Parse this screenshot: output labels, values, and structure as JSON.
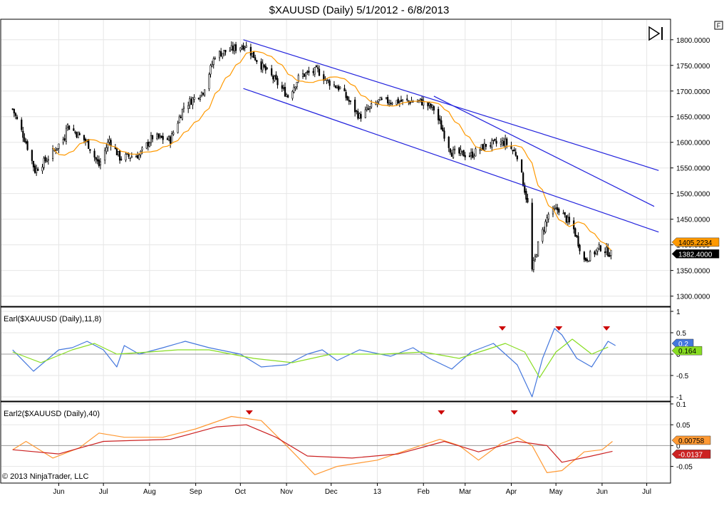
{
  "title": "$XAUUSD (Daily)  5/1/2012 - 6/8/2013",
  "copyright": "© 2013 NinjaTrader, LLC",
  "f_button": "F",
  "chart_data": [
    {
      "type": "candlestick",
      "name": "price",
      "y_ticks": [
        "1800.0000",
        "1750.0000",
        "1700.0000",
        "1650.0000",
        "1600.0000",
        "1550.0000",
        "1500.0000",
        "1450.0000",
        "1400.0000",
        "1350.0000",
        "1300.0000"
      ],
      "ylim": [
        1280,
        1840
      ],
      "close_anchors": [
        [
          "2012-05-01",
          1665
        ],
        [
          "2012-05-10",
          1600
        ],
        [
          "2012-05-16",
          1545
        ],
        [
          "2012-05-25",
          1570
        ],
        [
          "2012-06-05",
          1610
        ],
        [
          "2012-06-06",
          1635
        ],
        [
          "2012-06-20",
          1600
        ],
        [
          "2012-06-28",
          1555
        ],
        [
          "2012-07-05",
          1605
        ],
        [
          "2012-07-12",
          1570
        ],
        [
          "2012-07-25",
          1575
        ],
        [
          "2012-08-03",
          1610
        ],
        [
          "2012-08-15",
          1605
        ],
        [
          "2012-08-24",
          1670
        ],
        [
          "2012-09-06",
          1700
        ],
        [
          "2012-09-14",
          1770
        ],
        [
          "2012-10-04",
          1790
        ],
        [
          "2012-10-15",
          1750
        ],
        [
          "2012-10-23",
          1725
        ],
        [
          "2012-11-02",
          1690
        ],
        [
          "2012-11-10",
          1730
        ],
        [
          "2012-11-22",
          1740
        ],
        [
          "2012-11-28",
          1720
        ],
        [
          "2012-12-07",
          1705
        ],
        [
          "2012-12-20",
          1650
        ],
        [
          "2013-01-02",
          1680
        ],
        [
          "2013-01-15",
          1680
        ],
        [
          "2013-01-30",
          1680
        ],
        [
          "2013-02-08",
          1665
        ],
        [
          "2013-02-20",
          1580
        ],
        [
          "2013-03-05",
          1575
        ],
        [
          "2013-03-15",
          1595
        ],
        [
          "2013-03-28",
          1600
        ],
        [
          "2013-04-05",
          1575
        ],
        [
          "2013-04-12",
          1480
        ],
        [
          "2013-04-15",
          1350
        ],
        [
          "2013-04-19",
          1400
        ],
        [
          "2013-04-26",
          1460
        ],
        [
          "2013-05-03",
          1470
        ],
        [
          "2013-05-13",
          1430
        ],
        [
          "2013-05-20",
          1370
        ],
        [
          "2013-05-31",
          1395
        ],
        [
          "2013-06-07",
          1382
        ]
      ],
      "sma": {
        "period": 20,
        "color": "#ff9900",
        "last_value": "1405.2234"
      },
      "last_close": "1382.4000",
      "channel_lines": [
        {
          "from": [
            "2012-10-03",
            1800
          ],
          "to": [
            "2013-07-09",
            1545
          ]
        },
        {
          "from": [
            "2012-10-03",
            1705
          ],
          "to": [
            "2013-07-09",
            1425
          ]
        },
        {
          "from": [
            "2013-02-08",
            1690
          ],
          "to": [
            "2013-07-06",
            1475
          ]
        }
      ],
      "channel_color": "#2222dd",
      "up_color": "#ffffff",
      "down_color": "#000000",
      "outline": "#000000"
    },
    {
      "type": "line",
      "name": "earl1",
      "label": "Earl($XAUUSD (Daily),11,8)",
      "y_ticks": [
        "1",
        "0.5",
        "0",
        "-0.5",
        "-1"
      ],
      "ylim": [
        -1.1,
        1.1
      ],
      "series": [
        {
          "color": "#4477dd",
          "points": [
            [
              "2012-05-01",
              0.1
            ],
            [
              "2012-05-15",
              -0.4
            ],
            [
              "2012-06-01",
              0.1
            ],
            [
              "2012-06-10",
              0.15
            ],
            [
              "2012-06-20",
              0.3
            ],
            [
              "2012-07-01",
              0.1
            ],
            [
              "2012-07-10",
              -0.3
            ],
            [
              "2012-07-15",
              0.2
            ],
            [
              "2012-07-25",
              0.0
            ],
            [
              "2012-08-10",
              0.15
            ],
            [
              "2012-08-25",
              0.3
            ],
            [
              "2012-09-10",
              0.15
            ],
            [
              "2012-10-01",
              0.0
            ],
            [
              "2012-10-15",
              -0.3
            ],
            [
              "2012-11-01",
              -0.25
            ],
            [
              "2012-11-15",
              0.0
            ],
            [
              "2012-11-25",
              0.1
            ],
            [
              "2012-12-05",
              -0.15
            ],
            [
              "2012-12-20",
              0.1
            ],
            [
              "2013-01-10",
              -0.05
            ],
            [
              "2013-01-25",
              0.15
            ],
            [
              "2013-02-05",
              -0.1
            ],
            [
              "2013-02-20",
              -0.35
            ],
            [
              "2013-03-05",
              0.05
            ],
            [
              "2013-03-20",
              0.25
            ],
            [
              "2013-04-05",
              -0.25
            ],
            [
              "2013-04-15",
              -1.0
            ],
            [
              "2013-04-22",
              -0.1
            ],
            [
              "2013-04-30",
              0.6
            ],
            [
              "2013-05-05",
              0.45
            ],
            [
              "2013-05-15",
              -0.1
            ],
            [
              "2013-05-25",
              -0.3
            ],
            [
              "2013-06-05",
              0.3
            ],
            [
              "2013-06-10",
              0.2
            ]
          ]
        },
        {
          "color": "#88dd22",
          "points": [
            [
              "2012-05-01",
              0.05
            ],
            [
              "2012-05-20",
              -0.2
            ],
            [
              "2012-06-10",
              0.1
            ],
            [
              "2012-06-25",
              0.25
            ],
            [
              "2012-07-10",
              0.0
            ],
            [
              "2012-08-01",
              0.05
            ],
            [
              "2012-08-20",
              0.1
            ],
            [
              "2012-09-10",
              0.1
            ],
            [
              "2012-10-10",
              -0.1
            ],
            [
              "2012-11-05",
              -0.2
            ],
            [
              "2012-12-01",
              0.0
            ],
            [
              "2013-01-05",
              0.0
            ],
            [
              "2013-02-01",
              0.05
            ],
            [
              "2013-02-25",
              -0.1
            ],
            [
              "2013-03-15",
              0.1
            ],
            [
              "2013-03-28",
              0.25
            ],
            [
              "2013-04-10",
              0.05
            ],
            [
              "2013-04-20",
              -0.55
            ],
            [
              "2013-05-01",
              0.05
            ],
            [
              "2013-05-12",
              0.35
            ],
            [
              "2013-05-25",
              0.0
            ],
            [
              "2013-06-05",
              0.164
            ]
          ]
        }
      ],
      "last_blue": "0.2",
      "last_green": "0.164",
      "markers": [
        "2013-03-26",
        "2013-05-03",
        "2013-06-04"
      ]
    },
    {
      "type": "line",
      "name": "earl2",
      "label": "Earl2($XAUUSD (Daily),40)",
      "y_ticks": [
        "0.1",
        "0.05",
        "0",
        "-0.05"
      ],
      "ylim": [
        -0.09,
        0.105
      ],
      "series": [
        {
          "color": "#ff9933",
          "points": [
            [
              "2012-05-01",
              -0.01
            ],
            [
              "2012-05-10",
              0.01
            ],
            [
              "2012-05-28",
              -0.03
            ],
            [
              "2012-06-15",
              -0.005
            ],
            [
              "2012-06-28",
              0.03
            ],
            [
              "2012-07-15",
              0.02
            ],
            [
              "2012-08-10",
              0.02
            ],
            [
              "2012-09-01",
              0.04
            ],
            [
              "2012-09-25",
              0.07
            ],
            [
              "2012-10-15",
              0.06
            ],
            [
              "2012-11-01",
              0.0
            ],
            [
              "2012-11-20",
              -0.07
            ],
            [
              "2012-12-05",
              -0.05
            ],
            [
              "2013-01-01",
              -0.035
            ],
            [
              "2013-01-30",
              0.0
            ],
            [
              "2013-02-12",
              0.015
            ],
            [
              "2013-02-25",
              0.0
            ],
            [
              "2013-03-10",
              -0.035
            ],
            [
              "2013-03-25",
              0.005
            ],
            [
              "2013-04-05",
              0.02
            ],
            [
              "2013-04-15",
              0.0
            ],
            [
              "2013-04-25",
              -0.065
            ],
            [
              "2013-05-05",
              -0.06
            ],
            [
              "2013-05-20",
              -0.015
            ],
            [
              "2013-06-01",
              -0.01
            ],
            [
              "2013-06-08",
              0.01
            ]
          ]
        },
        {
          "color": "#cc2222",
          "points": [
            [
              "2012-05-01",
              -0.01
            ],
            [
              "2012-06-01",
              -0.02
            ],
            [
              "2012-07-01",
              0.01
            ],
            [
              "2012-08-15",
              0.015
            ],
            [
              "2012-09-15",
              0.045
            ],
            [
              "2012-10-05",
              0.05
            ],
            [
              "2012-10-25",
              0.02
            ],
            [
              "2012-11-15",
              -0.025
            ],
            [
              "2012-12-15",
              -0.03
            ],
            [
              "2013-01-15",
              -0.02
            ],
            [
              "2013-02-15",
              0.01
            ],
            [
              "2013-03-10",
              -0.015
            ],
            [
              "2013-04-05",
              0.01
            ],
            [
              "2013-04-25",
              0.0
            ],
            [
              "2013-05-05",
              -0.04
            ],
            [
              "2013-05-25",
              -0.025
            ],
            [
              "2013-06-08",
              -0.0137
            ]
          ]
        }
      ],
      "last_orange": "0.00758",
      "last_red": "-0.0137",
      "markers": [
        "2012-10-07",
        "2013-02-13",
        "2013-04-03"
      ]
    }
  ],
  "x_axis": {
    "labels": [
      [
        "2012-06-01",
        "Jun"
      ],
      [
        "2012-07-01",
        "Jul"
      ],
      [
        "2012-08-01",
        "Aug"
      ],
      [
        "2012-09-01",
        "Sep"
      ],
      [
        "2012-10-01",
        "Oct"
      ],
      [
        "2012-11-01",
        "Nov"
      ],
      [
        "2012-12-01",
        "Dec"
      ],
      [
        "2013-01-01",
        "13"
      ],
      [
        "2013-02-01",
        "Feb"
      ],
      [
        "2013-03-01",
        "Mar"
      ],
      [
        "2013-04-01",
        "Apr"
      ],
      [
        "2013-05-01",
        "May"
      ],
      [
        "2013-06-01",
        "Jun"
      ],
      [
        "2013-07-01",
        "Jul"
      ]
    ],
    "xlim": [
      "2012-04-23",
      "2013-07-17"
    ]
  }
}
